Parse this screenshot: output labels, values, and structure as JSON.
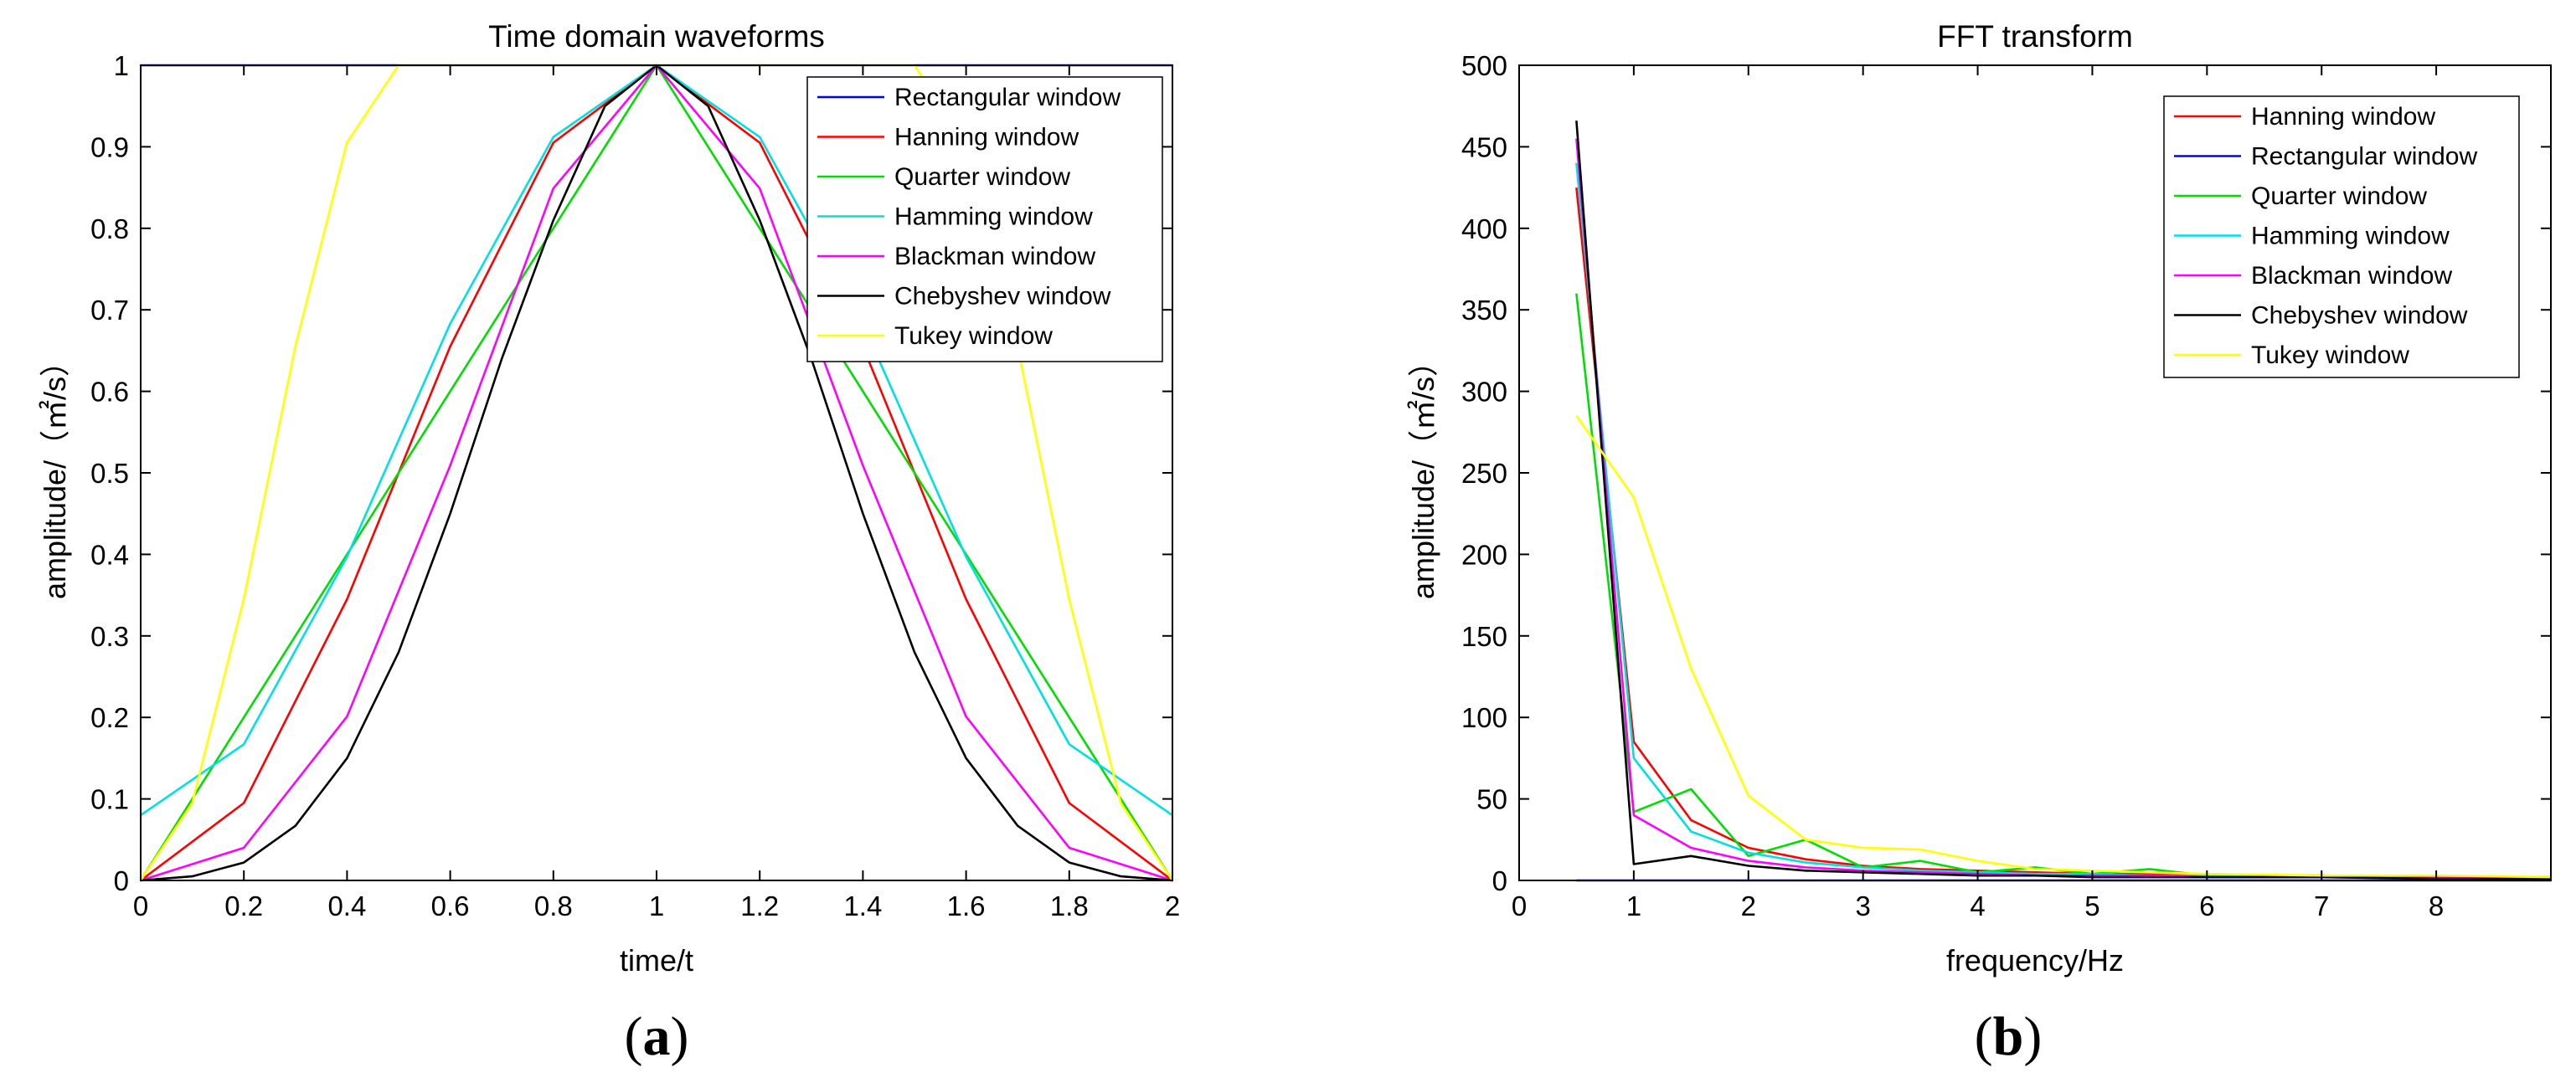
{
  "chart_data": [
    {
      "panel_caption": "(a)",
      "type": "line",
      "title": "Time domain waveforms",
      "xlabel": "time/t",
      "ylabel": "amplitude/（㎡/s）",
      "xlim": [
        0,
        2
      ],
      "ylim": [
        0,
        1
      ],
      "xticks": [
        "0",
        "0.2",
        "0.4",
        "0.6",
        "0.8",
        "1",
        "1.2",
        "1.4",
        "1.6",
        "1.8",
        "2"
      ],
      "yticks": [
        "0",
        "0.1",
        "0.2",
        "0.3",
        "0.4",
        "0.5",
        "0.6",
        "0.7",
        "0.8",
        "0.9",
        "1"
      ],
      "legend_position": "top-right",
      "series": [
        {
          "name": "Rectangular window",
          "color": "#0000ff",
          "x": [
            0,
            2
          ],
          "y": [
            1,
            1
          ]
        },
        {
          "name": "Hanning window",
          "color": "#ff0000",
          "x": [
            0,
            0.2,
            0.4,
            0.6,
            0.8,
            1.0,
            1.2,
            1.4,
            1.6,
            1.8,
            2.0
          ],
          "y": [
            0,
            0.095,
            0.345,
            0.655,
            0.905,
            1.0,
            0.905,
            0.655,
            0.345,
            0.095,
            0
          ]
        },
        {
          "name": "Quarter window",
          "color": "#00dd00",
          "x": [
            0,
            1,
            2
          ],
          "y": [
            0,
            1,
            0
          ]
        },
        {
          "name": "Hamming window",
          "color": "#00e0e0",
          "x": [
            0,
            0.2,
            0.4,
            0.6,
            0.8,
            1.0,
            1.2,
            1.4,
            1.6,
            1.8,
            2.0
          ],
          "y": [
            0.08,
            0.167,
            0.397,
            0.683,
            0.912,
            1.0,
            0.912,
            0.683,
            0.397,
            0.167,
            0.08
          ]
        },
        {
          "name": "Blackman window",
          "color": "#ff00ff",
          "x": [
            0,
            0.2,
            0.4,
            0.6,
            0.8,
            1.0,
            1.2,
            1.4,
            1.6,
            1.8,
            2.0
          ],
          "y": [
            0,
            0.04,
            0.201,
            0.509,
            0.849,
            1.0,
            0.849,
            0.509,
            0.201,
            0.04,
            0
          ]
        },
        {
          "name": "Chebyshev window",
          "color": "#000000",
          "x": [
            0,
            0.1,
            0.2,
            0.3,
            0.4,
            0.5,
            0.6,
            0.7,
            0.8,
            0.9,
            1.0,
            1.1,
            1.2,
            1.3,
            1.4,
            1.5,
            1.6,
            1.7,
            1.8,
            1.9,
            2.0
          ],
          "y": [
            0,
            0.005,
            0.022,
            0.067,
            0.15,
            0.28,
            0.45,
            0.64,
            0.81,
            0.95,
            1.0,
            0.95,
            0.81,
            0.64,
            0.45,
            0.28,
            0.15,
            0.067,
            0.022,
            0.005,
            0
          ]
        },
        {
          "name": "Tukey window",
          "color": "#ffff00",
          "x": [
            0,
            0.1,
            0.2,
            0.3,
            0.4,
            0.5,
            1.5,
            1.6,
            1.7,
            1.8,
            1.9,
            2.0
          ],
          "y": [
            0,
            0.095,
            0.345,
            0.655,
            0.905,
            1.0,
            1.0,
            0.905,
            0.655,
            0.345,
            0.095,
            0
          ]
        }
      ]
    },
    {
      "panel_caption": "(b)",
      "type": "line",
      "title": "FFT transform",
      "xlabel": "frequency/Hz",
      "ylabel": "amplitude/（㎡/s）",
      "xlim": [
        0,
        9
      ],
      "ylim": [
        0,
        500
      ],
      "xticks": [
        "0",
        "1",
        "2",
        "3",
        "4",
        "5",
        "6",
        "7",
        "8"
      ],
      "yticks": [
        "0",
        "50",
        "100",
        "150",
        "200",
        "250",
        "300",
        "350",
        "400",
        "450",
        "500"
      ],
      "legend_position": "top-right",
      "series": [
        {
          "name": "Hanning window",
          "color": "#ff0000",
          "x": [
            0.5,
            1,
            1.5,
            2,
            2.5,
            3,
            3.5,
            4,
            4.5,
            5,
            5.5,
            6,
            7,
            8,
            9
          ],
          "y": [
            425,
            85,
            37,
            20,
            13,
            9,
            7,
            6,
            5,
            4,
            4,
            3,
            3,
            2,
            2
          ]
        },
        {
          "name": "Rectangular window",
          "color": "#0000ff",
          "x": [
            0.5,
            9
          ],
          "y": [
            0,
            0
          ]
        },
        {
          "name": "Quarter window",
          "color": "#00dd00",
          "x": [
            0.5,
            1,
            1.5,
            2,
            2.5,
            3,
            3.5,
            4,
            4.5,
            5,
            5.5,
            6,
            7,
            8,
            9
          ],
          "y": [
            360,
            42,
            56,
            15,
            25,
            8,
            12,
            5,
            8,
            4,
            7,
            3,
            3,
            2,
            2
          ]
        },
        {
          "name": "Hamming window",
          "color": "#00e0e0",
          "x": [
            0.5,
            1,
            1.5,
            2,
            2.5,
            3,
            3.5,
            4,
            4.5,
            5,
            5.5,
            6,
            7,
            8,
            9
          ],
          "y": [
            440,
            75,
            30,
            17,
            11,
            8,
            6,
            5,
            4,
            4,
            3,
            3,
            2,
            2,
            2
          ]
        },
        {
          "name": "Blackman window",
          "color": "#ff00ff",
          "x": [
            0.5,
            1,
            1.5,
            2,
            2.5,
            3,
            3.5,
            4,
            4.5,
            5,
            5.5,
            6,
            7,
            8,
            9
          ],
          "y": [
            455,
            40,
            20,
            12,
            8,
            6,
            5,
            4,
            3,
            3,
            3,
            2,
            2,
            2,
            1
          ]
        },
        {
          "name": "Chebyshev window",
          "color": "#000000",
          "x": [
            0.5,
            1,
            1.5,
            2,
            2.5,
            3,
            3.5,
            4,
            4.5,
            5,
            5.5,
            6,
            7,
            8,
            9
          ],
          "y": [
            466,
            10,
            15,
            9,
            6,
            5,
            4,
            3,
            3,
            2,
            2,
            2,
            2,
            1,
            1
          ]
        },
        {
          "name": "Tukey window",
          "color": "#ffff00",
          "x": [
            0.5,
            1,
            1.5,
            2,
            2.5,
            3,
            3.5,
            4,
            4.5,
            5,
            5.5,
            6,
            7,
            8,
            9
          ],
          "y": [
            285,
            235,
            130,
            52,
            25,
            20,
            19,
            12,
            7,
            6,
            5,
            4,
            3,
            3,
            2
          ]
        }
      ]
    }
  ]
}
